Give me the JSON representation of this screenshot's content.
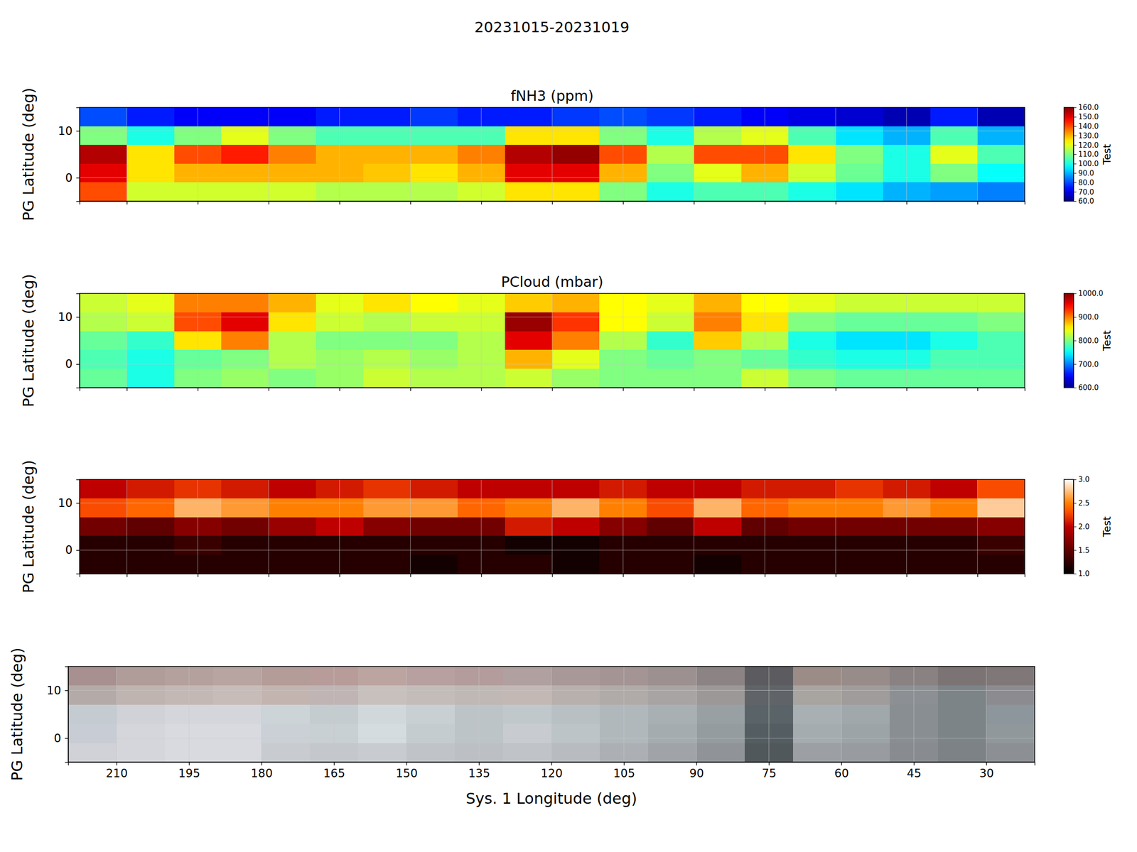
{
  "title": "20231015-20231019",
  "chart_data": [
    {
      "type": "heatmap",
      "title": "fNH3 (ppm)",
      "ylabel": "PG Latitude (deg)",
      "x": [
        215,
        205,
        195,
        185,
        175,
        165,
        155,
        145,
        135,
        125,
        115,
        105,
        95,
        85,
        75,
        65,
        55,
        45,
        35,
        25
      ],
      "y": [
        13,
        9,
        5,
        1,
        -3
      ],
      "values": [
        [
          80,
          75,
          72,
          72,
          72,
          75,
          75,
          78,
          75,
          75,
          78,
          80,
          78,
          75,
          72,
          70,
          68,
          65,
          75,
          65
        ],
        [
          110,
          100,
          110,
          120,
          110,
          105,
          105,
          105,
          105,
          125,
          125,
          110,
          100,
          115,
          120,
          105,
          95,
          90,
          105,
          90
        ],
        [
          155,
          125,
          140,
          145,
          135,
          130,
          130,
          130,
          135,
          155,
          158,
          140,
          115,
          140,
          140,
          125,
          110,
          100,
          120,
          105
        ],
        [
          150,
          125,
          130,
          130,
          130,
          130,
          128,
          125,
          130,
          150,
          150,
          130,
          110,
          120,
          130,
          118,
          108,
          100,
          110,
          98
        ],
        [
          140,
          118,
          118,
          118,
          118,
          115,
          115,
          115,
          118,
          125,
          125,
          110,
          100,
          105,
          105,
          100,
          95,
          90,
          88,
          85
        ]
      ],
      "xlim": [
        220,
        20
      ],
      "ylim": [
        -5,
        15
      ],
      "xticks": [
        210,
        195,
        180,
        165,
        150,
        135,
        120,
        105,
        90,
        75,
        60,
        45,
        30
      ],
      "yticks": [
        0,
        10
      ],
      "grid": true,
      "tick_labels": "y",
      "color": "jet",
      "zlim": [
        60,
        160
      ],
      "zticks": [
        {
          "value": 60,
          "label": "60.0"
        },
        {
          "value": 70,
          "label": "70.0"
        },
        {
          "value": 80,
          "label": "80.0"
        },
        {
          "value": 90,
          "label": "90.0"
        },
        {
          "value": 100,
          "label": "100.0"
        },
        {
          "value": 110,
          "label": "110.0"
        },
        {
          "value": 120,
          "label": "120.0"
        },
        {
          "value": 130,
          "label": "130.0"
        },
        {
          "value": 140,
          "label": "140.0"
        },
        {
          "value": 150,
          "label": "150.0"
        },
        {
          "value": 160,
          "label": "160.0"
        }
      ],
      "zlabel": "Test"
    },
    {
      "type": "heatmap",
      "title": "PCloud (mbar)",
      "ylabel": "PG Latitude (deg)",
      "x": [
        215,
        205,
        195,
        185,
        175,
        165,
        155,
        145,
        135,
        125,
        115,
        105,
        95,
        85,
        75,
        65,
        55,
        45,
        35,
        25
      ],
      "y": [
        13,
        9,
        5,
        1,
        -3
      ],
      "values": [
        [
          830,
          840,
          900,
          900,
          880,
          840,
          860,
          850,
          840,
          870,
          880,
          850,
          840,
          880,
          850,
          840,
          830,
          830,
          830,
          830
        ],
        [
          820,
          830,
          920,
          960,
          860,
          830,
          820,
          830,
          830,
          990,
          930,
          850,
          830,
          900,
          860,
          800,
          790,
          790,
          790,
          800
        ],
        [
          790,
          770,
          860,
          900,
          820,
          800,
          800,
          800,
          820,
          960,
          900,
          820,
          770,
          870,
          820,
          760,
          740,
          740,
          760,
          780
        ],
        [
          780,
          760,
          790,
          800,
          820,
          810,
          820,
          810,
          820,
          880,
          840,
          800,
          790,
          800,
          790,
          770,
          760,
          760,
          780,
          780
        ],
        [
          790,
          760,
          800,
          810,
          800,
          810,
          830,
          820,
          820,
          830,
          810,
          800,
          800,
          800,
          830,
          800,
          790,
          790,
          790,
          790
        ]
      ],
      "xlim": [
        220,
        20
      ],
      "ylim": [
        -5,
        15
      ],
      "xticks": [
        210,
        195,
        180,
        165,
        150,
        135,
        120,
        105,
        90,
        75,
        60,
        45,
        30
      ],
      "yticks": [
        0,
        10
      ],
      "grid": true,
      "tick_labels": "y",
      "color": "jet",
      "zlim": [
        600,
        1000
      ],
      "zticks": [
        {
          "value": 600,
          "label": "600.0"
        },
        {
          "value": 700,
          "label": "700.0"
        },
        {
          "value": 800,
          "label": "800.0"
        },
        {
          "value": 900,
          "label": "900.0"
        },
        {
          "value": 1000,
          "label": "1000.0"
        }
      ],
      "zlabel": "Test"
    },
    {
      "type": "heatmap",
      "ylabel": "PG Latitude (deg)",
      "x": [
        215,
        205,
        195,
        185,
        175,
        165,
        155,
        145,
        135,
        125,
        115,
        105,
        95,
        85,
        75,
        65,
        55,
        45,
        35,
        25
      ],
      "y": [
        13,
        9,
        5,
        1,
        -3
      ],
      "values": [
        [
          2.0,
          2.1,
          2.2,
          2.1,
          2.0,
          2.1,
          2.2,
          2.1,
          2.0,
          2.0,
          2.0,
          2.1,
          2.0,
          2.0,
          2.1,
          2.1,
          2.2,
          2.1,
          2.0,
          2.3
        ],
        [
          2.3,
          2.4,
          2.7,
          2.6,
          2.5,
          2.5,
          2.6,
          2.6,
          2.4,
          2.5,
          2.7,
          2.5,
          2.3,
          2.7,
          2.4,
          2.5,
          2.5,
          2.6,
          2.5,
          2.8
        ],
        [
          1.6,
          1.5,
          1.7,
          1.6,
          1.8,
          2.0,
          1.7,
          1.6,
          1.6,
          2.1,
          2.0,
          1.7,
          1.5,
          2.0,
          1.5,
          1.6,
          1.6,
          1.6,
          1.6,
          1.7
        ],
        [
          1.2,
          1.2,
          1.3,
          1.2,
          1.2,
          1.2,
          1.2,
          1.2,
          1.2,
          1.1,
          1.1,
          1.2,
          1.2,
          1.2,
          1.2,
          1.2,
          1.2,
          1.2,
          1.2,
          1.3
        ],
        [
          1.2,
          1.2,
          1.2,
          1.2,
          1.2,
          1.2,
          1.2,
          1.1,
          1.2,
          1.2,
          1.1,
          1.2,
          1.2,
          1.1,
          1.2,
          1.2,
          1.2,
          1.2,
          1.2,
          1.2
        ]
      ],
      "xlim": [
        220,
        20
      ],
      "ylim": [
        -5,
        15
      ],
      "xticks": [
        210,
        195,
        180,
        165,
        150,
        135,
        120,
        105,
        90,
        75,
        60,
        45,
        30
      ],
      "yticks": [
        0,
        10
      ],
      "grid": true,
      "tick_labels": "y",
      "color": "gist_heat",
      "zlim": [
        1,
        3
      ],
      "zticks": [
        {
          "value": 1,
          "label": "1.0"
        },
        {
          "value": 1.5,
          "label": "1.5"
        },
        {
          "value": 2,
          "label": "2.0"
        },
        {
          "value": 2.5,
          "label": "2.5"
        },
        {
          "value": 3,
          "label": "3.0"
        }
      ],
      "zlabel": "Test"
    },
    {
      "type": "image",
      "ylabel": "PG Latitude (deg)",
      "xlabel": "Sys. 1 Longitude (deg)",
      "x": [
        215,
        205,
        195,
        185,
        175,
        165,
        155,
        145,
        135,
        125,
        115,
        105,
        95,
        85,
        75,
        65,
        55,
        45,
        35,
        25
      ],
      "y": [
        13,
        9,
        5,
        1,
        -3
      ],
      "colors": [
        [
          "#a89090",
          "#b09c98",
          "#b4a09c",
          "#b8a4a0",
          "#b49c98",
          "#b89c9a",
          "#bca4a0",
          "#b8a0a0",
          "#b49c9c",
          "#b0a0a0",
          "#a89898",
          "#a49494",
          "#9c9090",
          "#8c8484",
          "#5c5c60",
          "#9c8c88",
          "#988c8a",
          "#8a8282",
          "#7c7474",
          "#807878"
        ],
        [
          "#b4aaa8",
          "#c0b4b0",
          "#c4b8b4",
          "#c8bcb8",
          "#c4b4b0",
          "#c0b4b4",
          "#c8c0bc",
          "#c4bcb8",
          "#c0b8b4",
          "#c4b8b4",
          "#b8b0ac",
          "#b0aaa8",
          "#a8a4a4",
          "#9c9898",
          "#606468",
          "#a8a4a0",
          "#a09c9c",
          "#8c9094",
          "#7c8488",
          "#8c8c90"
        ],
        [
          "#c4ccd2",
          "#d0d2d8",
          "#d4d6dc",
          "#d4d6dc",
          "#ccd4d8",
          "#c4ccd0",
          "#d0d8dc",
          "#c8d0d4",
          "#bcc4c8",
          "#c0c8cc",
          "#b8c0c4",
          "#b0b8bc",
          "#a8b0b4",
          "#98a0a4",
          "#5a6468",
          "#a8b0b4",
          "#a0a8ac",
          "#888e92",
          "#7c8488",
          "#8c969c"
        ],
        [
          "#c8ccd4",
          "#d4d6dc",
          "#d8dae0",
          "#d8dae0",
          "#cad0d6",
          "#c8d0d4",
          "#d4dce0",
          "#c4ccd0",
          "#bcc4c8",
          "#c8ccd0",
          "#bcc4c8",
          "#b0b8bc",
          "#a4acb0",
          "#949ca0",
          "#545e62",
          "#a4acb0",
          "#9ca4a8",
          "#888e92",
          "#7c8488",
          "#90989c"
        ],
        [
          "#d0d2d8",
          "#d4d6dc",
          "#d8dae0",
          "#d8dae0",
          "#c8ccd0",
          "#c4c8cc",
          "#c8ccd0",
          "#c0c4c8",
          "#bcc0c4",
          "#c0c4c8",
          "#b8bcc0",
          "#acb0b4",
          "#a0a4a8",
          "#909498",
          "#50585c",
          "#9ca0a4",
          "#989ca0",
          "#888c90",
          "#7c8286",
          "#8c9094"
        ]
      ],
      "xlim": [
        220,
        20
      ],
      "ylim": [
        -5,
        15
      ],
      "xticks": [
        210,
        195,
        180,
        165,
        150,
        135,
        120,
        105,
        90,
        75,
        60,
        45,
        30
      ],
      "yticks": [
        0,
        10
      ],
      "grid": true
    }
  ]
}
